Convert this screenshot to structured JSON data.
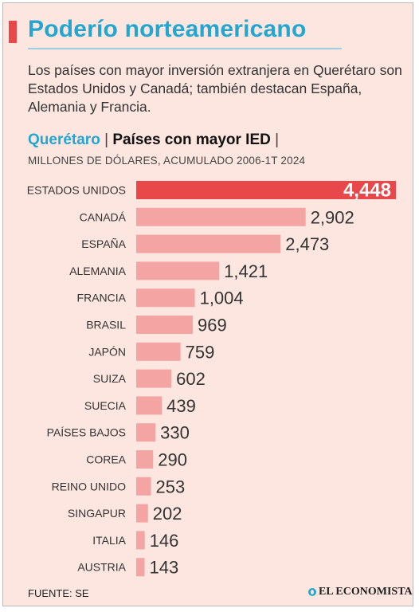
{
  "header": {
    "title": "Poderío norteamericano",
    "subtitle": "Los países con mayor inversión extranjera en Querétaro son Estados Unidos y Canadá; también destacan España, Alemania y Francia."
  },
  "chart_heading": {
    "place": "Querétaro",
    "separator": "|",
    "main": "Países con mayor IED",
    "units": "MILLONES DE DÓLARES, ACUMULADO 2006-1T 2024"
  },
  "chart_data": {
    "type": "bar",
    "orientation": "horizontal",
    "categories": [
      "ESTADOS UNIDOS",
      "CANADÁ",
      "ESPAÑA",
      "ALEMANIA",
      "FRANCIA",
      "BRASIL",
      "JAPÓN",
      "SUIZA",
      "SUECIA",
      "PAÍSES BAJOS",
      "COREA",
      "REINO UNIDO",
      "SINGAPUR",
      "ITALIA",
      "AUSTRIA"
    ],
    "values": [
      4448,
      2902,
      2473,
      1421,
      1004,
      969,
      759,
      602,
      439,
      330,
      290,
      253,
      202,
      146,
      143
    ],
    "value_labels": [
      "4,448",
      "2,902",
      "2,473",
      "1,421",
      "1,004",
      "969",
      "759",
      "602",
      "439",
      "330",
      "290",
      "253",
      "202",
      "146",
      "143"
    ],
    "highlight_index": 0,
    "colors": {
      "highlight": "#e8484a",
      "bar": "#f4a5a3"
    },
    "grid": false,
    "legend": "none"
  },
  "footer": {
    "source": "FUENTE: SE",
    "brand": "EL ECONOMISTA",
    "brand_icon": "el-economista-logo-icon"
  }
}
